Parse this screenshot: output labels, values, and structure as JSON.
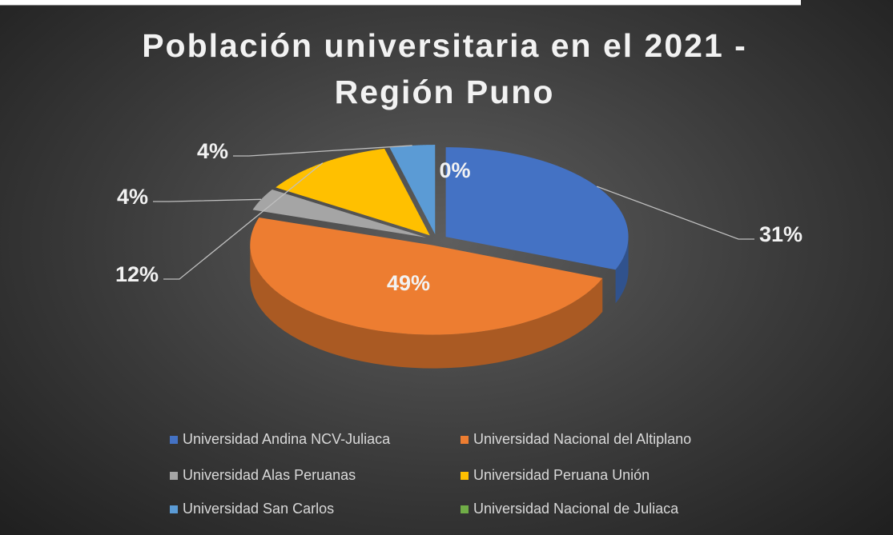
{
  "chart_data": {
    "type": "pie",
    "title": "Población universitaria en el 2021 - Región Puno",
    "series": [
      {
        "name": "Universidad Andina NCV-Juliaca",
        "color": "#4472c4"
      },
      {
        "name": "Universidad Nacional del Altiplano",
        "color": "#ed7d31"
      },
      {
        "name": "Universidad Alas Peruanas",
        "color": "#a5a5a5"
      },
      {
        "name": "Universidad Peruana Unión",
        "color": "#ffc000"
      },
      {
        "name": "Universidad San Carlos",
        "color": "#5b9bd5"
      },
      {
        "name": "Universidad Nacional de Juliaca",
        "color": "#70ad47"
      }
    ],
    "values": [
      31,
      49,
      4,
      12,
      4,
      0
    ],
    "value_labels": [
      "31%",
      "49%",
      "4%",
      "12%",
      "4%",
      "0%"
    ],
    "legend": "bottom"
  }
}
